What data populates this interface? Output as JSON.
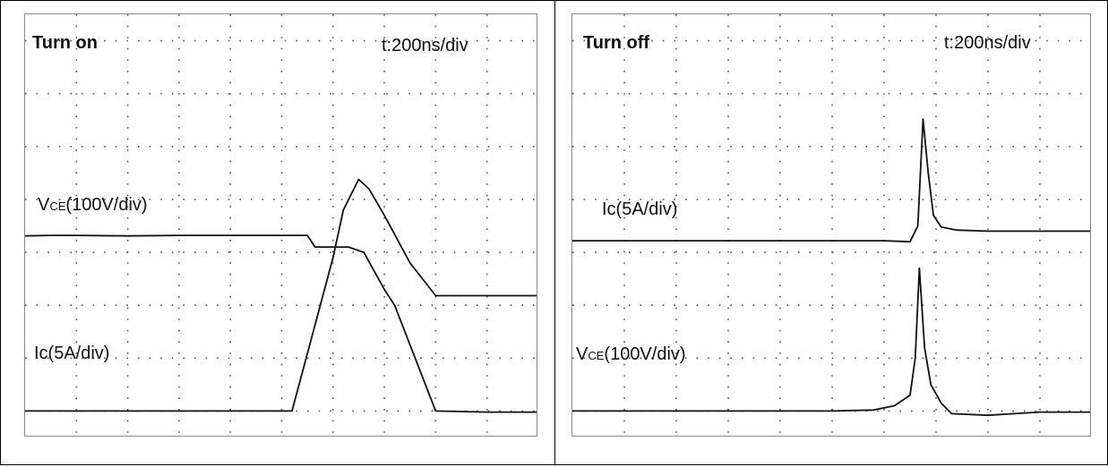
{
  "chart_data": [
    {
      "type": "line",
      "title": "Turn on",
      "timebase": "t:200ns/div",
      "series": [
        {
          "name": "VCE(100V/div)",
          "name_main": "V",
          "name_sub": "CE",
          "name_rest": "(100V/div)",
          "x": [
            0,
            0.5,
            1.0,
            2.0,
            3.0,
            4.0,
            5.0,
            5.5,
            5.65,
            6.3,
            6.6,
            7.0,
            7.2,
            8.0,
            9.0,
            10.0
          ],
          "y": [
            3.31,
            3.32,
            3.32,
            3.31,
            3.32,
            3.32,
            3.32,
            3.32,
            3.1,
            3.1,
            3.0,
            2.3,
            2.0,
            0.0,
            -0.02,
            -0.02
          ]
        },
        {
          "name": "Ic(5A/div)",
          "x": [
            0,
            1.0,
            2.0,
            3.0,
            4.0,
            5.0,
            5.2,
            6.0,
            6.2,
            6.5,
            6.7,
            7.0,
            7.5,
            8.0,
            9.0,
            10.0
          ],
          "y": [
            0.0,
            0.0,
            0.0,
            0.0,
            0.0,
            0.0,
            0.0,
            2.9,
            3.8,
            4.38,
            4.2,
            3.7,
            2.8,
            2.18,
            2.18,
            2.18
          ]
        }
      ],
      "xlim": [
        0,
        10
      ],
      "ylim": [
        -0.5,
        7.5
      ],
      "grid": true
    },
    {
      "type": "line",
      "title": "Turn off",
      "timebase": "t:200ns/div",
      "series": [
        {
          "name": "Ic(5A/div)",
          "x": [
            0,
            1.0,
            2.0,
            3.0,
            4.0,
            5.0,
            6.0,
            6.5,
            6.65,
            6.75,
            6.85,
            6.95,
            7.1,
            7.4,
            8.0,
            9.0,
            10.0
          ],
          "y": [
            3.22,
            3.22,
            3.22,
            3.22,
            3.22,
            3.22,
            3.22,
            3.2,
            3.5,
            5.52,
            4.5,
            3.7,
            3.48,
            3.42,
            3.4,
            3.4,
            3.4
          ]
        },
        {
          "name": "VCE(100V/div)",
          "name_main": "V",
          "name_sub": "CE",
          "name_rest": "(100V/div)",
          "x": [
            0,
            1.0,
            2.0,
            3.0,
            4.0,
            5.0,
            5.8,
            6.2,
            6.5,
            6.6,
            6.68,
            6.78,
            6.9,
            7.1,
            7.3,
            8.0,
            9.0,
            10.0
          ],
          "y": [
            0.0,
            0.0,
            0.0,
            0.0,
            0.0,
            0.0,
            0.02,
            0.1,
            0.3,
            1.0,
            2.7,
            1.2,
            0.5,
            0.15,
            -0.05,
            -0.08,
            -0.02,
            -0.02
          ]
        }
      ],
      "xlim": [
        0,
        10
      ],
      "ylim": [
        -0.5,
        7.5
      ],
      "grid": true
    }
  ]
}
